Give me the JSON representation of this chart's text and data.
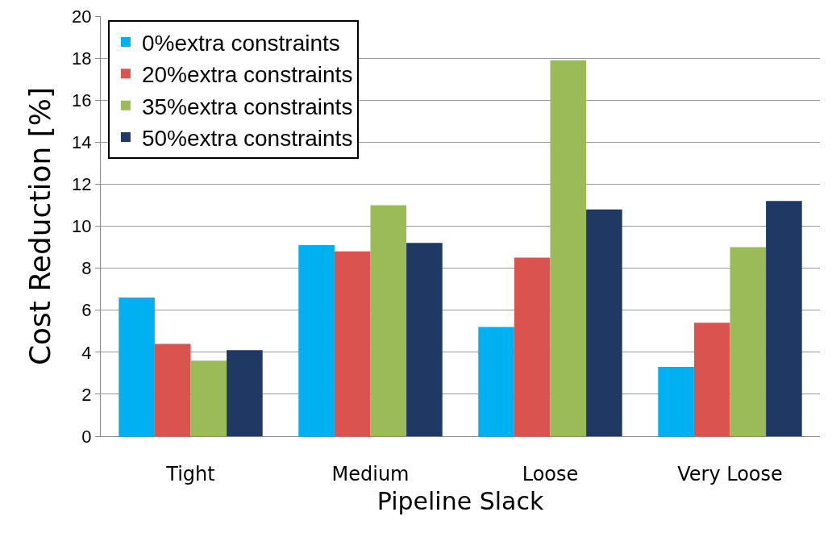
{
  "chart_data": {
    "type": "bar",
    "xlabel": "Pipeline Slack",
    "ylabel": "Cost Reduction [%]",
    "categories": [
      "Tight",
      "Medium",
      "Loose",
      "Very Loose"
    ],
    "series": [
      {
        "name": "0%extra constraints",
        "color": "#00b0f0",
        "values": [
          6.6,
          9.1,
          5.2,
          3.3
        ]
      },
      {
        "name": "20%extra constraints",
        "color": "#d9534f",
        "values": [
          4.4,
          8.8,
          8.5,
          5.4
        ]
      },
      {
        "name": "35%extra constraints",
        "color": "#9bbb59",
        "values": [
          3.6,
          11.0,
          17.9,
          9.0
        ]
      },
      {
        "name": "50%extra constraints",
        "color": "#1f3864",
        "values": [
          4.1,
          9.2,
          10.8,
          11.2
        ]
      }
    ],
    "ylim": [
      0,
      20
    ],
    "yticks": [
      0,
      2,
      4,
      6,
      8,
      10,
      12,
      14,
      16,
      18,
      20
    ],
    "grid": "y",
    "legend": "top left"
  }
}
